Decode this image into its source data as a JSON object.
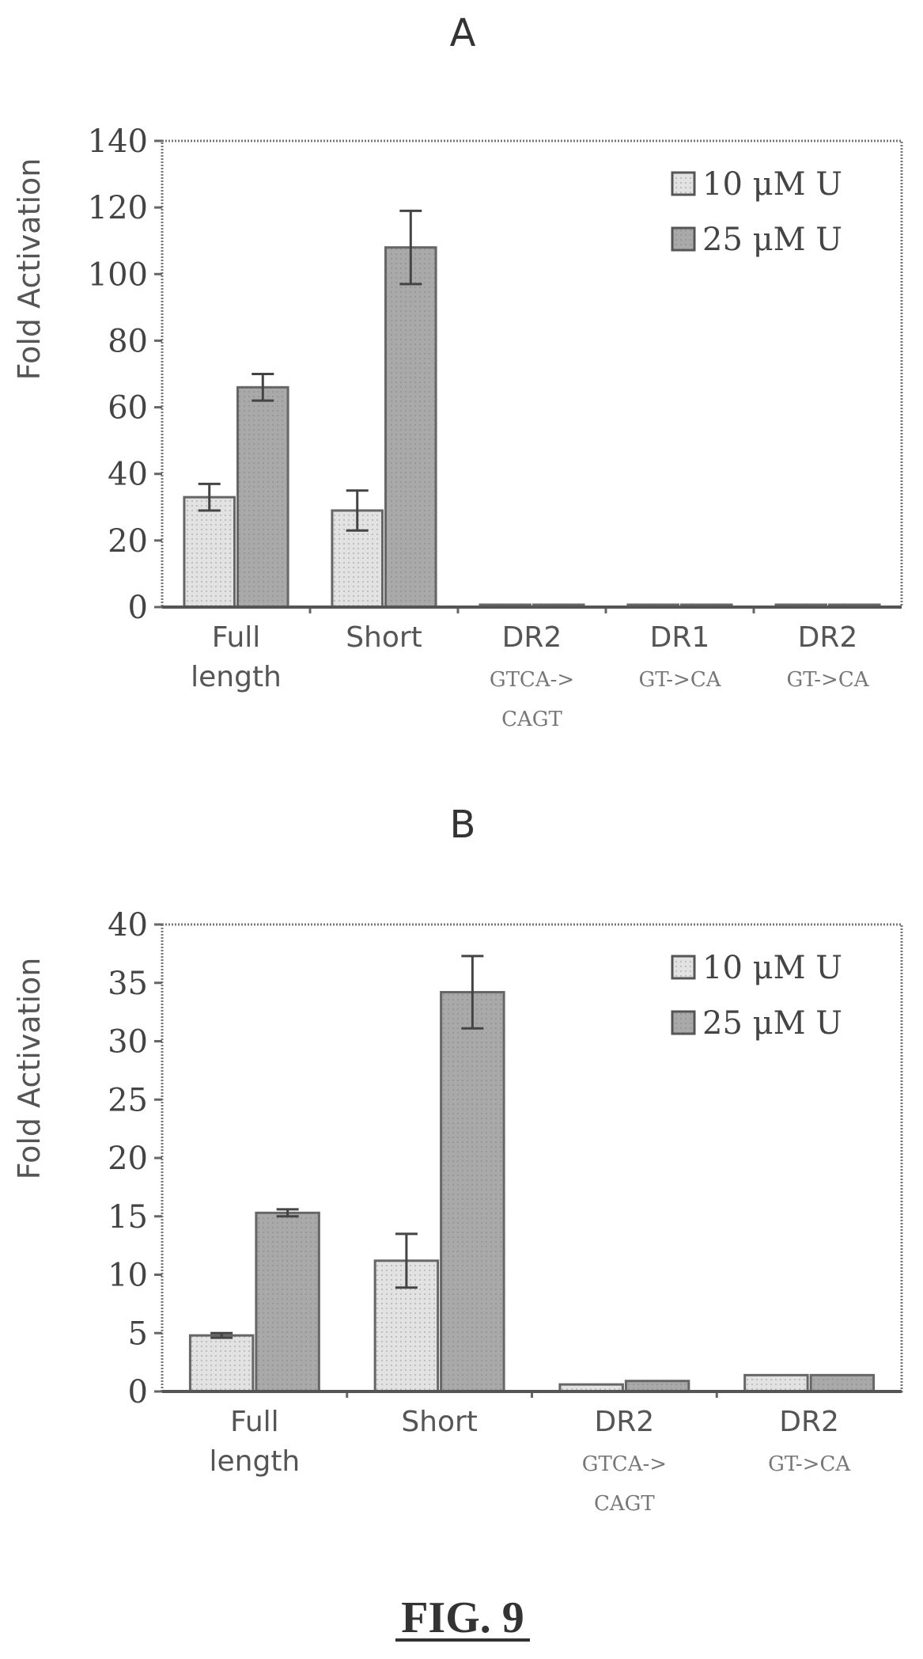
{
  "figure_label": "FIG. 9",
  "chart_data": [
    {
      "panel": "A",
      "type": "bar",
      "ylabel": "Fold Activation",
      "ylim": [
        0,
        140
      ],
      "yticks": [
        0,
        20,
        40,
        60,
        80,
        100,
        120,
        140
      ],
      "categories": [
        {
          "line1": "Full",
          "line2": "length",
          "line3": ""
        },
        {
          "line1": "Short",
          "line2": "",
          "line3": ""
        },
        {
          "line1": "DR2",
          "line2": "GTCA->",
          "line3": "CAGT"
        },
        {
          "line1": "DR1",
          "line2": "GT->CA",
          "line3": ""
        },
        {
          "line1": "DR2",
          "line2": "GT->CA",
          "line3": ""
        }
      ],
      "series": [
        {
          "name": "10 μM U",
          "color": "#e2e2e2",
          "values": [
            33,
            29,
            0.5,
            0.5,
            0.5
          ],
          "errors": [
            4,
            6,
            0,
            0,
            0
          ]
        },
        {
          "name": "25 μM U",
          "color": "#a9a9a9",
          "values": [
            66,
            108,
            0.5,
            0.5,
            0.5
          ],
          "errors": [
            4,
            11,
            0,
            0,
            0
          ]
        }
      ],
      "legend_position": "top-right",
      "grid": false
    },
    {
      "panel": "B",
      "type": "bar",
      "ylabel": "Fold Activation",
      "ylim": [
        0,
        40
      ],
      "yticks": [
        0,
        5,
        10,
        15,
        20,
        25,
        30,
        35,
        40
      ],
      "categories": [
        {
          "line1": "Full",
          "line2": "length",
          "line3": ""
        },
        {
          "line1": "Short",
          "line2": "",
          "line3": ""
        },
        {
          "line1": "DR2",
          "line2": "GTCA->",
          "line3": "CAGT"
        },
        {
          "line1": "DR2",
          "line2": "GT->CA",
          "line3": ""
        }
      ],
      "series": [
        {
          "name": "10 μM U",
          "color": "#e2e2e2",
          "values": [
            4.8,
            11.2,
            0.6,
            1.4
          ],
          "errors": [
            0.2,
            2.3,
            0,
            0
          ]
        },
        {
          "name": "25 μM U",
          "color": "#a9a9a9",
          "values": [
            15.3,
            34.2,
            0.9,
            1.4
          ],
          "errors": [
            0.3,
            3.1,
            0,
            0
          ]
        }
      ],
      "legend_position": "top-right",
      "grid": false
    }
  ]
}
